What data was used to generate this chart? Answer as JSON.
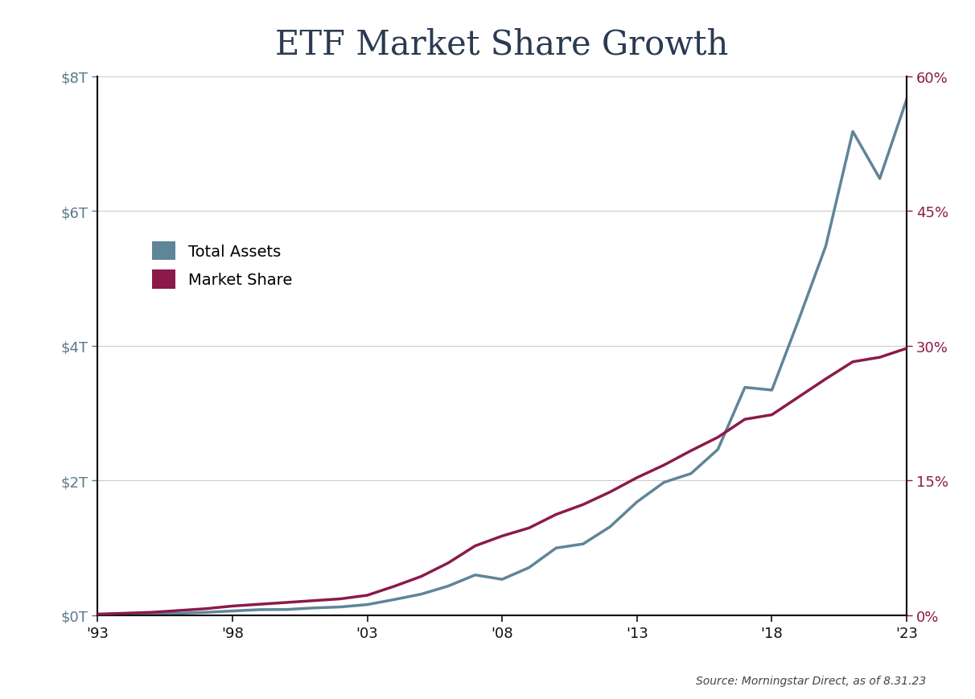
{
  "title": "ETF Market Share Growth",
  "title_fontsize": 30,
  "title_color": "#2b3a52",
  "background_color": "#ffffff",
  "source_text": "Source: Morningstar Direct, as of 8.31.23",
  "years": [
    1993,
    1994,
    1995,
    1996,
    1997,
    1998,
    1999,
    2000,
    2001,
    2002,
    2003,
    2004,
    2005,
    2006,
    2007,
    2008,
    2009,
    2010,
    2011,
    2012,
    2013,
    2014,
    2015,
    2016,
    2017,
    2018,
    2019,
    2020,
    2021,
    2022,
    2023
  ],
  "total_assets": [
    0.005,
    0.01,
    0.015,
    0.025,
    0.04,
    0.06,
    0.08,
    0.082,
    0.105,
    0.12,
    0.155,
    0.23,
    0.31,
    0.43,
    0.595,
    0.53,
    0.705,
    0.995,
    1.055,
    1.31,
    1.68,
    1.97,
    2.1,
    2.46,
    3.38,
    3.34,
    4.39,
    5.48,
    7.18,
    6.48,
    7.66
  ],
  "market_share": [
    0.001,
    0.002,
    0.003,
    0.005,
    0.007,
    0.01,
    0.012,
    0.014,
    0.016,
    0.018,
    0.022,
    0.032,
    0.043,
    0.058,
    0.077,
    0.088,
    0.097,
    0.112,
    0.123,
    0.137,
    0.153,
    0.167,
    0.183,
    0.198,
    0.218,
    0.223,
    0.243,
    0.263,
    0.282,
    0.287,
    0.297
  ],
  "assets_color": "#5f8598",
  "market_share_color": "#8b1a4a",
  "left_ylim": [
    0,
    8.0
  ],
  "right_ylim": [
    0,
    0.6
  ],
  "left_yticks": [
    0,
    2,
    4,
    6,
    8
  ],
  "left_yticklabels": [
    "$0T",
    "$2T",
    "$4T",
    "$6T",
    "$8T"
  ],
  "right_yticks": [
    0,
    0.15,
    0.3,
    0.45,
    0.6
  ],
  "right_yticklabels": [
    "0%",
    "15%",
    "30%",
    "45%",
    "60%"
  ],
  "xtick_years": [
    1993,
    1998,
    2003,
    2008,
    2013,
    2018,
    2023
  ],
  "xtick_labels": [
    "'93",
    "'98",
    "'03",
    "'08",
    "'13",
    "'18",
    "'23"
  ],
  "legend_labels": [
    "Total Assets",
    "Market Share"
  ],
  "line_width": 2.5,
  "left_tick_color": "#5a7a8a",
  "right_tick_color": "#8b1a4a",
  "grid_color": "#cccccc",
  "axis_color": "#111111",
  "xtick_color": "#111111",
  "tick_fontsize": 13,
  "legend_fontsize": 14,
  "source_fontsize": 10
}
